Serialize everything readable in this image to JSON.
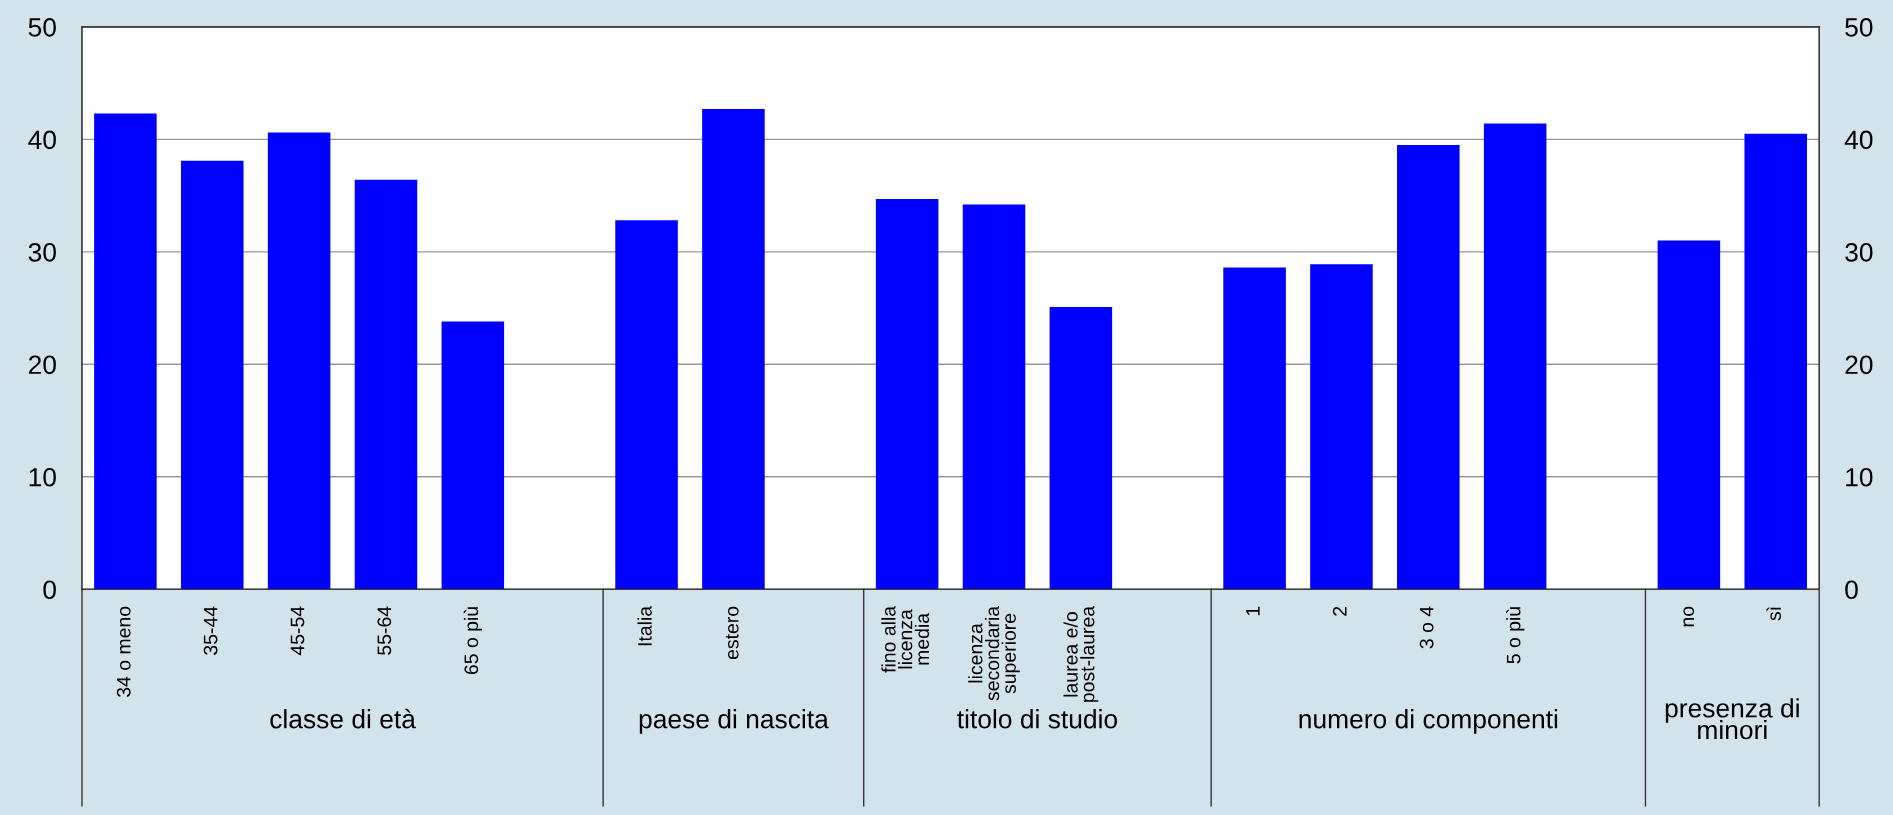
{
  "chart_data": {
    "type": "bar",
    "categories": [
      "34 o meno",
      "35-44",
      "45-54",
      "55-64",
      "65 o più",
      null,
      "Italia",
      "estero",
      null,
      "fino alla\nlicenza\nmedia",
      "licenza\nsecondaria\nsuperiore",
      "laurea e/o\npost-laurea",
      null,
      "1",
      "2",
      "3 o 4",
      "5 o più",
      null,
      "no",
      "sì"
    ],
    "values": [
      42.3,
      38.1,
      40.6,
      36.4,
      23.8,
      null,
      32.8,
      42.7,
      null,
      34.7,
      34.2,
      25.1,
      null,
      28.6,
      28.9,
      39.5,
      41.4,
      null,
      31.0,
      40.5
    ],
    "color": "#0000ff",
    "ylim": [
      0,
      50
    ],
    "yticks": [
      0,
      10,
      20,
      30,
      40,
      50
    ],
    "y2lim": [
      0,
      50
    ],
    "y2ticks": [
      0,
      10,
      20,
      30,
      40,
      50
    ],
    "grid": "y",
    "annotations": [
      "classe di età",
      "paese di nascita",
      "titolo di studio",
      "numero di componenti",
      "presenza di\nminori"
    ]
  }
}
